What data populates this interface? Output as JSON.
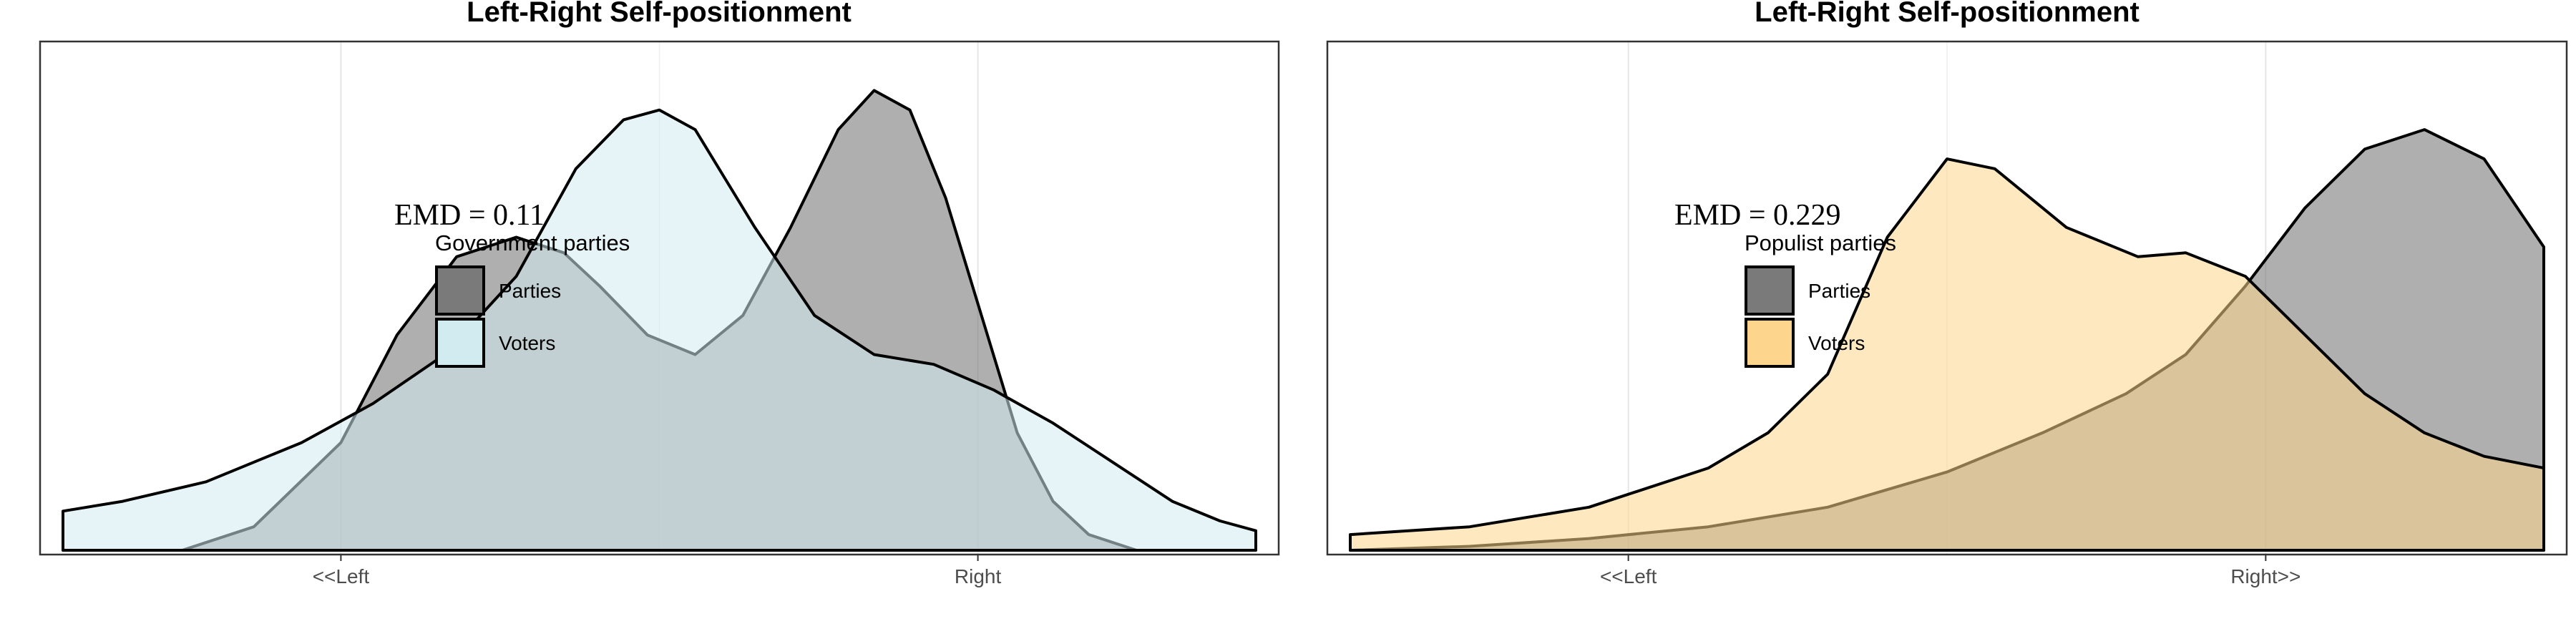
{
  "chart_data": [
    {
      "type": "area",
      "title": "Left-Right Self-positionment",
      "emd_label": "EMD = 0.11",
      "legend_title": "Government parties",
      "xlim": [
        0,
        10
      ],
      "ylim": [
        0,
        0.26
      ],
      "x_ticks": [
        {
          "value": 2.33,
          "label": "<<Left"
        },
        {
          "value": 7.67,
          "label": "Right"
        }
      ],
      "x_minor_gridlines": [
        5.0
      ],
      "grid": true,
      "legend_position": "upper-left inside plot",
      "series": [
        {
          "name": "Parties",
          "fill": "#7a7a7a",
          "x": [
            1.0,
            1.6,
            2.33,
            2.8,
            3.3,
            3.8,
            4.2,
            4.5,
            4.9,
            5.3,
            5.7,
            6.1,
            6.5,
            6.8,
            7.1,
            7.4,
            7.7,
            8.0,
            8.3,
            8.6,
            9.0
          ],
          "y": [
            0.0,
            0.012,
            0.055,
            0.11,
            0.15,
            0.16,
            0.152,
            0.135,
            0.11,
            0.1,
            0.12,
            0.165,
            0.215,
            0.235,
            0.225,
            0.18,
            0.12,
            0.06,
            0.025,
            0.008,
            0.0
          ]
        },
        {
          "name": "Voters",
          "fill": "#d2ebf0",
          "x": [
            0.0,
            0.5,
            1.2,
            2.0,
            2.6,
            3.2,
            3.8,
            4.3,
            4.7,
            5.0,
            5.3,
            5.8,
            6.3,
            6.8,
            7.3,
            7.8,
            8.3,
            8.8,
            9.3,
            9.7,
            10.0
          ],
          "y": [
            0.02,
            0.025,
            0.035,
            0.055,
            0.075,
            0.1,
            0.14,
            0.195,
            0.22,
            0.225,
            0.215,
            0.165,
            0.12,
            0.1,
            0.095,
            0.082,
            0.065,
            0.045,
            0.025,
            0.015,
            0.01
          ]
        }
      ]
    },
    {
      "type": "area",
      "title": "Left-Right Self-positionment",
      "emd_label": "EMD = 0.229",
      "legend_title": "Populist parties",
      "xlim": [
        0,
        10
      ],
      "ylim": [
        0,
        0.26
      ],
      "x_ticks": [
        {
          "value": 2.33,
          "label": "<<Left"
        },
        {
          "value": 7.67,
          "label": "Right>>"
        }
      ],
      "x_minor_gridlines": [
        5.0
      ],
      "grid": true,
      "legend_position": "upper-left inside plot",
      "series": [
        {
          "name": "Parties",
          "fill": "#7a7a7a",
          "x": [
            0.0,
            1.0,
            2.0,
            3.0,
            4.0,
            5.0,
            5.8,
            6.5,
            7.0,
            7.5,
            8.0,
            8.5,
            9.0,
            9.5,
            10.0
          ],
          "y": [
            0.0,
            0.002,
            0.006,
            0.012,
            0.022,
            0.04,
            0.06,
            0.08,
            0.1,
            0.135,
            0.175,
            0.205,
            0.215,
            0.2,
            0.155
          ]
        },
        {
          "name": "Voters",
          "fill": "#fdd58c",
          "x": [
            0.0,
            1.0,
            2.0,
            3.0,
            3.5,
            4.0,
            4.5,
            5.0,
            5.4,
            6.0,
            6.6,
            7.0,
            7.5,
            8.0,
            8.5,
            9.0,
            9.5,
            10.0
          ],
          "y": [
            0.008,
            0.012,
            0.022,
            0.042,
            0.06,
            0.09,
            0.16,
            0.2,
            0.195,
            0.165,
            0.15,
            0.152,
            0.14,
            0.11,
            0.08,
            0.06,
            0.048,
            0.042
          ]
        }
      ]
    }
  ]
}
